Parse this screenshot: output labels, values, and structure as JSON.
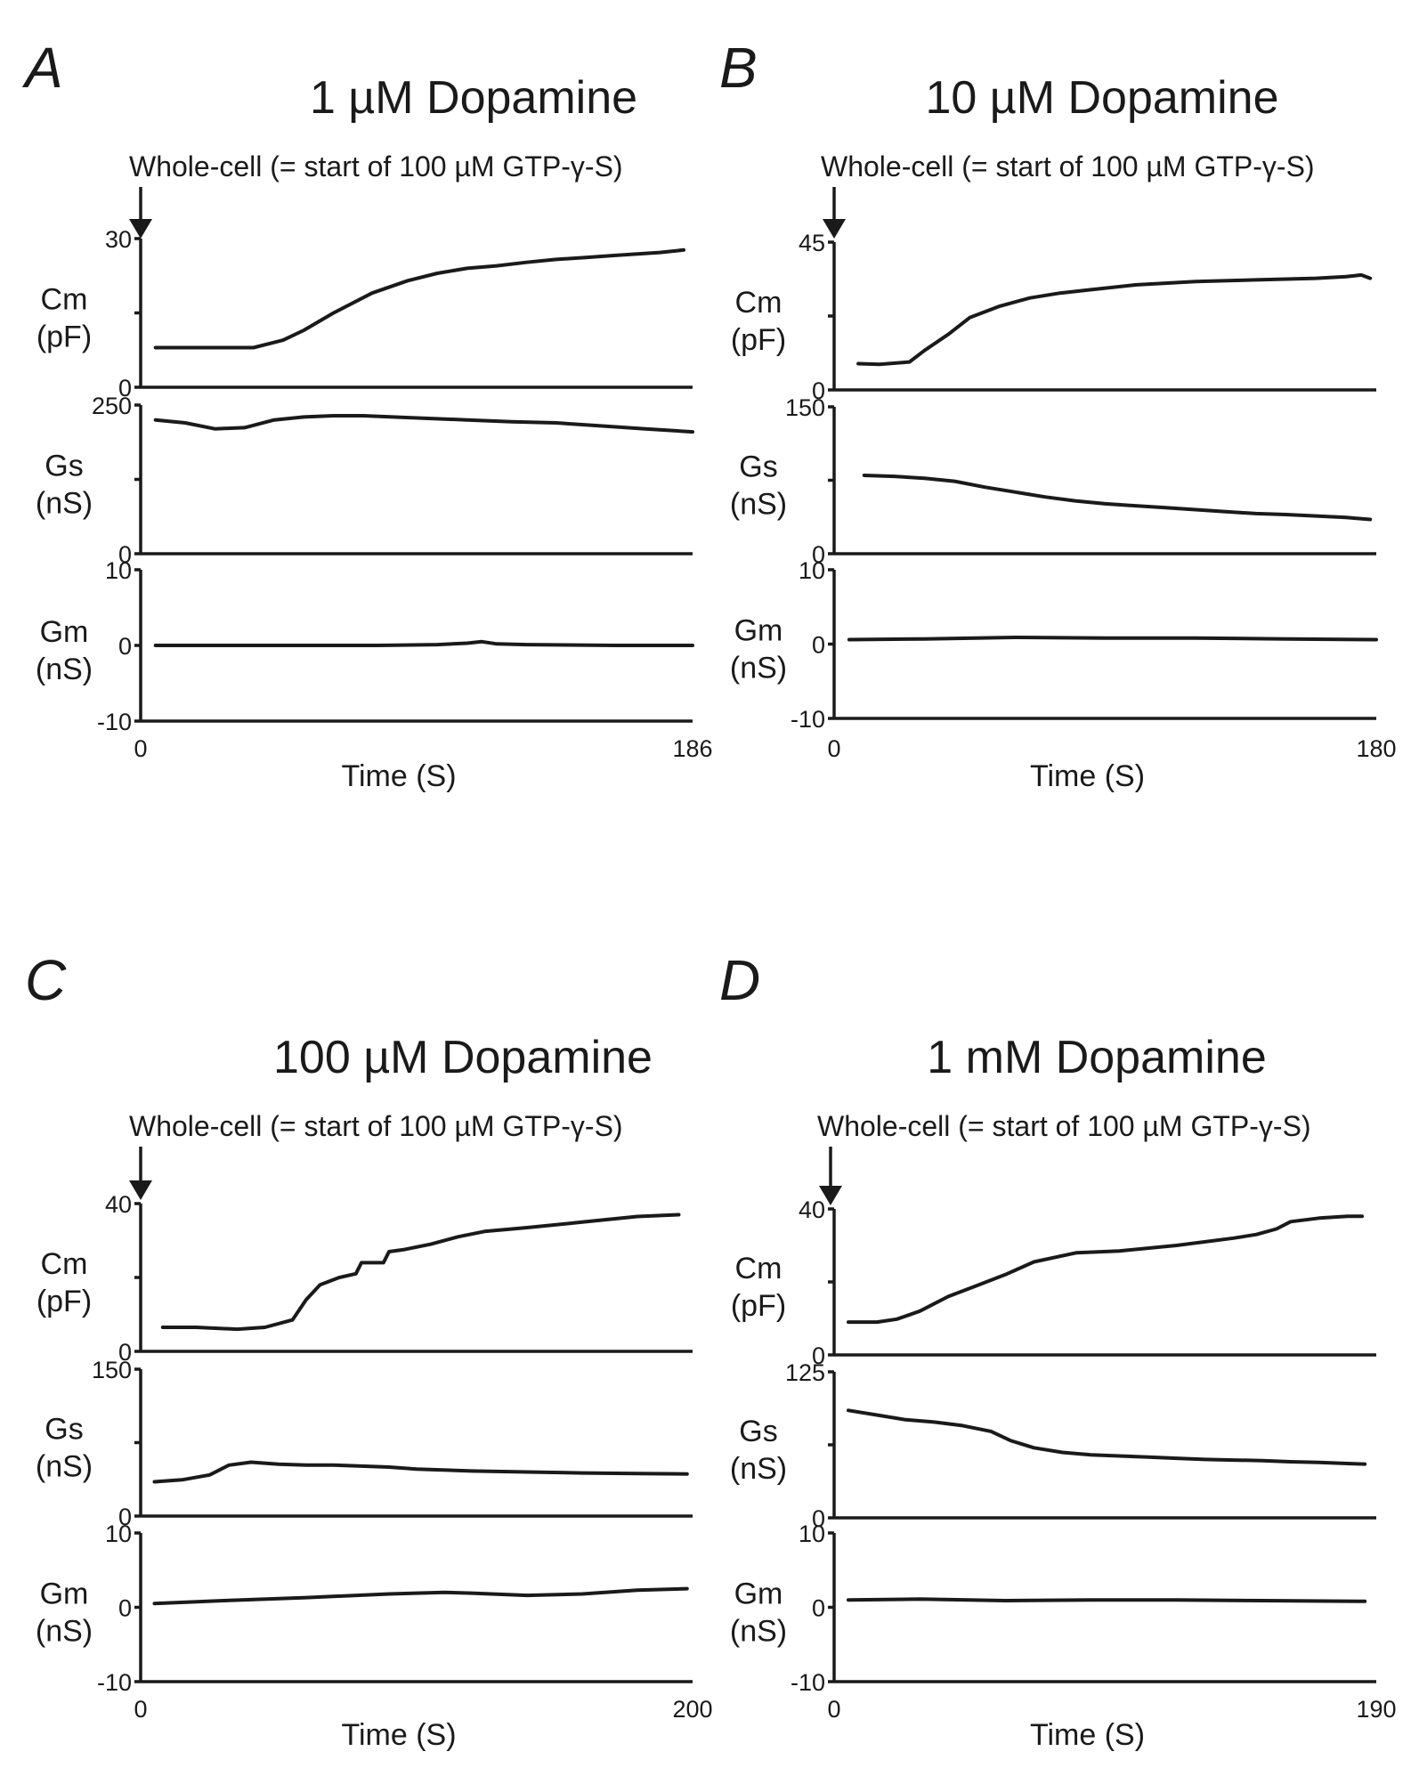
{
  "chart_data": [
    {
      "type": "line",
      "panel": "A",
      "title": "1 µM Dopamine",
      "annotation": "Whole-cell (= start of 100 µM GTP-γ-S)",
      "xlabel": "Time (S)",
      "xlim": [
        0,
        186
      ],
      "xticks": [
        "0",
        "186"
      ],
      "subplots": [
        {
          "label1": "Cm",
          "label2": "(pF)",
          "ylim": [
            0,
            30
          ],
          "yticks": [
            "30",
            "0"
          ],
          "x": [
            5,
            20,
            38,
            48,
            55,
            65,
            78,
            90,
            100,
            110,
            120,
            130,
            140,
            150,
            160,
            175,
            183
          ],
          "y": [
            8,
            8,
            8,
            9.5,
            11.5,
            15,
            19,
            21.5,
            23,
            24,
            24.5,
            25.2,
            25.8,
            26.2,
            26.6,
            27.2,
            27.7
          ]
        },
        {
          "label1": "Gs",
          "label2": "(nS)",
          "ylim": [
            0,
            250
          ],
          "yticks": [
            "250",
            "0"
          ],
          "x": [
            5,
            15,
            25,
            35,
            45,
            55,
            65,
            75,
            85,
            95,
            110,
            125,
            140,
            155,
            170,
            186
          ],
          "y": [
            225,
            220,
            210,
            212,
            225,
            230,
            232,
            232,
            230,
            228,
            225,
            222,
            220,
            215,
            210,
            205
          ]
        },
        {
          "label1": "Gm",
          "label2": "(nS)",
          "ylim": [
            -10,
            10
          ],
          "yticks": [
            "10",
            "0",
            "-10"
          ],
          "x": [
            5,
            40,
            80,
            100,
            110,
            115,
            120,
            130,
            160,
            186
          ],
          "y": [
            0,
            0,
            0,
            0.1,
            0.3,
            0.5,
            0.2,
            0.1,
            0,
            0
          ]
        }
      ]
    },
    {
      "type": "line",
      "panel": "B",
      "title": "10 µM Dopamine",
      "annotation": "Whole-cell (= start of 100 µM GTP-γ-S)",
      "xlabel": "Time (S)",
      "xlim": [
        0,
        180
      ],
      "xticks": [
        "0",
        "180"
      ],
      "subplots": [
        {
          "label1": "Cm",
          "label2": "(pF)",
          "ylim": [
            0,
            45
          ],
          "yticks": [
            "45",
            "0"
          ],
          "x": [
            8,
            15,
            25,
            30,
            38,
            45,
            55,
            65,
            75,
            85,
            100,
            120,
            140,
            160,
            170,
            175,
            178
          ],
          "y": [
            8,
            7.8,
            8.5,
            12,
            17,
            22,
            25.5,
            28,
            29.5,
            30.5,
            32,
            33,
            33.5,
            34,
            34.5,
            35,
            34
          ]
        },
        {
          "label1": "Gs",
          "label2": "(nS)",
          "ylim": [
            0,
            150
          ],
          "yticks": [
            "150",
            "0"
          ],
          "x": [
            10,
            20,
            30,
            40,
            50,
            60,
            70,
            80,
            90,
            100,
            110,
            120,
            130,
            140,
            150,
            160,
            170,
            178
          ],
          "y": [
            80,
            79,
            77,
            74,
            68,
            63,
            58,
            54,
            51,
            49,
            47,
            45,
            43,
            41,
            40,
            38.5,
            37,
            35
          ]
        },
        {
          "label1": "Gm",
          "label2": "(nS)",
          "ylim": [
            -10,
            10
          ],
          "yticks": [
            "10",
            "0",
            "-10"
          ],
          "x": [
            5,
            30,
            60,
            90,
            120,
            150,
            180
          ],
          "y": [
            0.6,
            0.7,
            0.9,
            0.8,
            0.8,
            0.7,
            0.6
          ]
        }
      ]
    },
    {
      "type": "line",
      "panel": "C",
      "title": "100 µM Dopamine",
      "annotation": "Whole-cell (= start of 100 µM GTP-γ-S)",
      "xlabel": "Time (S)",
      "xlim": [
        0,
        200
      ],
      "xticks": [
        "0",
        "200"
      ],
      "subplots": [
        {
          "label1": "Cm",
          "label2": "(pF)",
          "ylim": [
            0,
            40
          ],
          "yticks": [
            "40",
            "0"
          ],
          "x": [
            8,
            20,
            35,
            45,
            55,
            60,
            65,
            72,
            78,
            80,
            88,
            90,
            95,
            105,
            115,
            125,
            140,
            160,
            180,
            195
          ],
          "y": [
            6.5,
            6.5,
            6,
            6.5,
            8.5,
            14,
            18,
            20,
            21,
            24,
            24,
            27,
            27.5,
            29,
            31,
            32.5,
            33.5,
            35,
            36.5,
            37
          ]
        },
        {
          "label1": "Gs",
          "label2": "(nS)",
          "ylim": [
            0,
            150
          ],
          "yticks": [
            "150",
            "0"
          ],
          "x": [
            5,
            15,
            25,
            32,
            40,
            50,
            60,
            70,
            80,
            90,
            100,
            120,
            140,
            160,
            180,
            198
          ],
          "y": [
            35,
            37,
            42,
            52,
            55,
            53,
            52,
            52,
            51,
            50,
            48,
            46,
            45,
            44,
            43.5,
            43
          ]
        },
        {
          "label1": "Gm",
          "label2": "(nS)",
          "ylim": [
            -10,
            10
          ],
          "yticks": [
            "10",
            "0",
            "-10"
          ],
          "x": [
            5,
            30,
            60,
            90,
            110,
            120,
            140,
            160,
            180,
            198
          ],
          "y": [
            0.5,
            0.9,
            1.3,
            1.8,
            2.0,
            1.9,
            1.6,
            1.8,
            2.3,
            2.5
          ]
        }
      ]
    },
    {
      "type": "line",
      "panel": "D",
      "title": "1 mM Dopamine",
      "annotation": "Whole-cell (= start of 100 µM GTP-γ-S)",
      "xlabel": "Time (S)",
      "xlim": [
        0,
        190
      ],
      "xticks": [
        "0",
        "190"
      ],
      "subplots": [
        {
          "label1": "Cm",
          "label2": "(pF)",
          "ylim": [
            0,
            40
          ],
          "yticks": [
            "40",
            "0"
          ],
          "x": [
            5,
            15,
            22,
            30,
            40,
            50,
            60,
            70,
            85,
            100,
            120,
            140,
            148,
            155,
            160,
            170,
            180,
            185
          ],
          "y": [
            9,
            9,
            9.8,
            12,
            16,
            19,
            22,
            25.5,
            28,
            28.5,
            30,
            32,
            33,
            34.5,
            36.5,
            37.5,
            38,
            38
          ]
        },
        {
          "label1": "Gs",
          "label2": "(nS)",
          "ylim": [
            0,
            125
          ],
          "yticks": [
            "125",
            "0"
          ],
          "x": [
            5,
            15,
            25,
            35,
            45,
            55,
            62,
            70,
            80,
            90,
            100,
            110,
            120,
            130,
            140,
            150,
            160,
            170,
            180,
            186
          ],
          "y": [
            92,
            88,
            84,
            82,
            79,
            74,
            66,
            60,
            56,
            54,
            53,
            52,
            51,
            50,
            49.5,
            49,
            48,
            47.5,
            46.5,
            46
          ]
        },
        {
          "label1": "Gm",
          "label2": "(nS)",
          "ylim": [
            -10,
            10
          ],
          "yticks": [
            "10",
            "0",
            "-10"
          ],
          "x": [
            5,
            30,
            60,
            90,
            120,
            150,
            186
          ],
          "y": [
            1.0,
            1.1,
            0.9,
            1.0,
            1.0,
            0.9,
            0.8
          ]
        }
      ]
    }
  ]
}
